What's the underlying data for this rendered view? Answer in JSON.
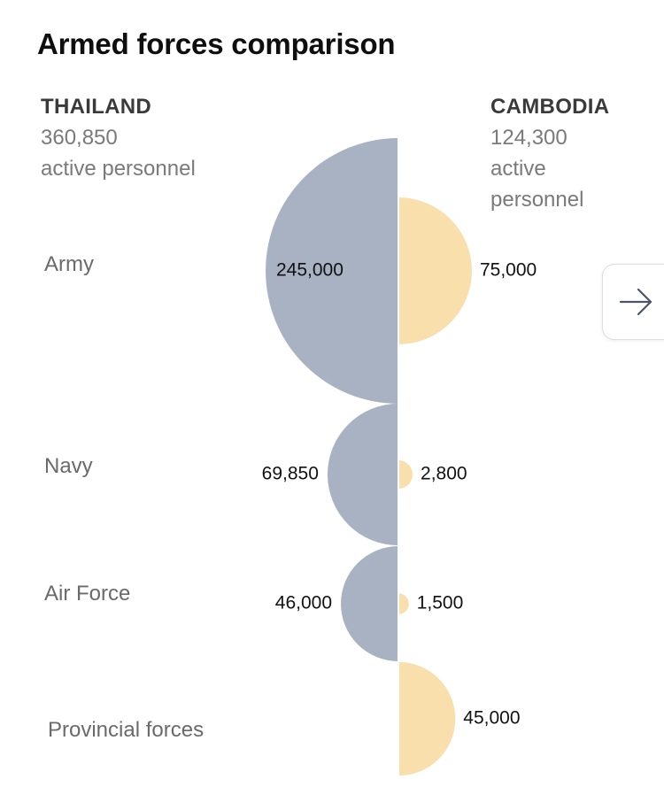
{
  "title": "Armed forces comparison",
  "countries": {
    "left": {
      "name": "THAILAND",
      "total": "360,850",
      "unit_lines": [
        "active personnel"
      ]
    },
    "right": {
      "name": "CAMBODIA",
      "total": "124,300",
      "unit_lines": [
        "active",
        "personnel"
      ]
    }
  },
  "colors": {
    "left": "#a8b2c2",
    "right": "#f9dfac",
    "divider": "#ffffff"
  },
  "chart_data": {
    "type": "mirrored-semicircle",
    "title": "Armed forces comparison",
    "categories": [
      "Army",
      "Navy",
      "Air Force",
      "Provincial forces"
    ],
    "series": [
      {
        "name": "THAILAND",
        "values": [
          245000,
          69850,
          46000,
          0
        ],
        "labels": [
          "245,000",
          "69,850",
          "46,000",
          ""
        ]
      },
      {
        "name": "CAMBODIA",
        "values": [
          75000,
          2800,
          1500,
          45000
        ],
        "labels": [
          "75,000",
          "2,800",
          "1,500",
          "45,000"
        ]
      }
    ],
    "encoding": "semicircle area proportional to personnel count"
  },
  "nav": {
    "next_icon": "arrow-right-icon"
  }
}
